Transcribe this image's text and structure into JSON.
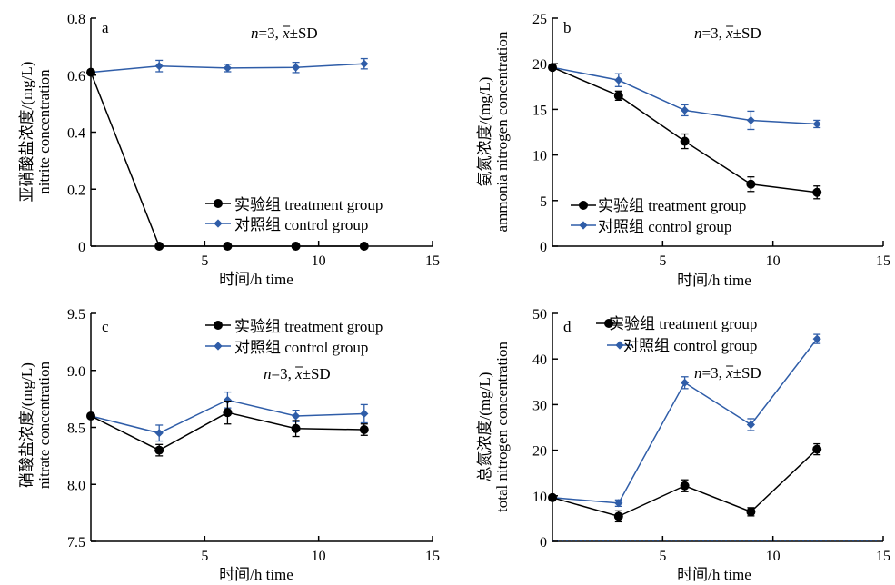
{
  "colors": {
    "treatment": "#000000",
    "control": "#2f5da8",
    "axis": "#000000"
  },
  "chart_data": [
    {
      "panel": "a",
      "type": "line",
      "ylabel_cn": "亚硝酸盐浓度/(mg/L)",
      "ylabel_en": "nitrite concentration",
      "xlabel": "时间/h time",
      "xlim": [
        0,
        15
      ],
      "ylim": [
        0,
        0.8
      ],
      "xticks": [
        5,
        10,
        15
      ],
      "yticks": [
        0,
        0.2,
        0.4,
        0.6,
        0.8
      ],
      "ytick_labels": [
        "0",
        "0.2",
        "0.4",
        "0.6",
        "0.8"
      ],
      "stat": {
        "n": "n",
        "rest": "=3, ",
        "x": "x",
        "sd": "±SD"
      },
      "legend": [
        "实验组 treatment group",
        "对照组 control group"
      ],
      "x": [
        0,
        3,
        6,
        9,
        12
      ],
      "series": [
        {
          "name": "实验组 treatment group",
          "values": [
            0.61,
            0,
            0,
            0,
            0
          ],
          "err": [
            0,
            0,
            0,
            0,
            0
          ]
        },
        {
          "name": "对照组 control group",
          "values": [
            0.61,
            0.632,
            0.625,
            0.627,
            0.64
          ],
          "err": [
            0,
            0.02,
            0.013,
            0.018,
            0.018
          ]
        }
      ]
    },
    {
      "panel": "b",
      "type": "line",
      "ylabel_cn": "氨氮浓度/(mg/L)",
      "ylabel_en": "ammonia nitrogen concentration",
      "xlabel": "时间/h time",
      "xlim": [
        0,
        15
      ],
      "ylim": [
        0,
        25
      ],
      "xticks": [
        5,
        10,
        15
      ],
      "yticks": [
        0,
        5,
        10,
        15,
        20,
        25
      ],
      "ytick_labels": [
        "0",
        "5",
        "10",
        "15",
        "20",
        "25"
      ],
      "stat": {
        "n": "n",
        "rest": "=3, ",
        "x": "x",
        "sd": "±SD"
      },
      "legend": [
        "实验组 treatment group",
        "对照组 control group"
      ],
      "x": [
        0,
        3,
        6,
        9,
        12
      ],
      "series": [
        {
          "name": "实验组 treatment group",
          "values": [
            19.6,
            16.5,
            11.5,
            6.8,
            5.9
          ],
          "err": [
            0.2,
            0.5,
            0.8,
            0.8,
            0.7
          ]
        },
        {
          "name": "对照组 control group",
          "values": [
            19.6,
            18.2,
            14.9,
            13.8,
            13.4
          ],
          "err": [
            0.2,
            0.7,
            0.6,
            1.0,
            0.4
          ]
        }
      ]
    },
    {
      "panel": "c",
      "type": "line",
      "ylabel_cn": "硝酸盐浓度/(mg/L)",
      "ylabel_en": "nitrate concentration",
      "xlabel": "时间/h time",
      "xlim": [
        0,
        15
      ],
      "ylim": [
        7.5,
        9.5
      ],
      "xticks": [
        5,
        10,
        15
      ],
      "yticks": [
        7.5,
        8.0,
        8.5,
        9.0,
        9.5
      ],
      "ytick_labels": [
        "7.5",
        "8.0",
        "8.5",
        "9.0",
        "9.5"
      ],
      "stat": {
        "n": "n",
        "rest": "=3, ",
        "x": "x",
        "sd": "±SD"
      },
      "legend": [
        "实验组 treatment group",
        "对照组 control group"
      ],
      "x": [
        0,
        3,
        6,
        9,
        12
      ],
      "series": [
        {
          "name": "实验组 treatment group",
          "values": [
            8.6,
            8.3,
            8.63,
            8.49,
            8.48
          ],
          "err": [
            0,
            0.05,
            0.1,
            0.07,
            0.05
          ]
        },
        {
          "name": "对照组 control group",
          "values": [
            8.6,
            8.45,
            8.74,
            8.6,
            8.62
          ],
          "err": [
            0,
            0.07,
            0.07,
            0.05,
            0.08
          ]
        }
      ]
    },
    {
      "panel": "d",
      "type": "line",
      "ylabel_cn": "总氮浓度/(mg/L)",
      "ylabel_en": "total nitrogen concentration",
      "xlabel": "时间/h time",
      "xlim": [
        0,
        15
      ],
      "ylim": [
        0,
        50
      ],
      "xticks": [
        5,
        10,
        15
      ],
      "yticks": [
        0,
        10,
        20,
        30,
        40,
        50
      ],
      "ytick_labels": [
        "0",
        "10",
        "20",
        "30",
        "40",
        "50"
      ],
      "stat": {
        "n": "n",
        "rest": "=3, ",
        "x": "x",
        "sd": "±SD"
      },
      "legend": [
        "实验组 treatment group",
        "对照组 control group"
      ],
      "x": [
        0,
        3,
        6,
        9,
        12
      ],
      "series": [
        {
          "name": "实验组 treatment group",
          "values": [
            9.6,
            5.5,
            12.2,
            6.5,
            20.2
          ],
          "err": [
            0.3,
            1.2,
            1.3,
            0.9,
            1.2
          ]
        },
        {
          "name": "对照组 control group",
          "values": [
            9.6,
            8.4,
            34.8,
            25.6,
            44.4
          ],
          "err": [
            0.3,
            0.7,
            1.3,
            1.3,
            1.0
          ]
        }
      ]
    }
  ]
}
